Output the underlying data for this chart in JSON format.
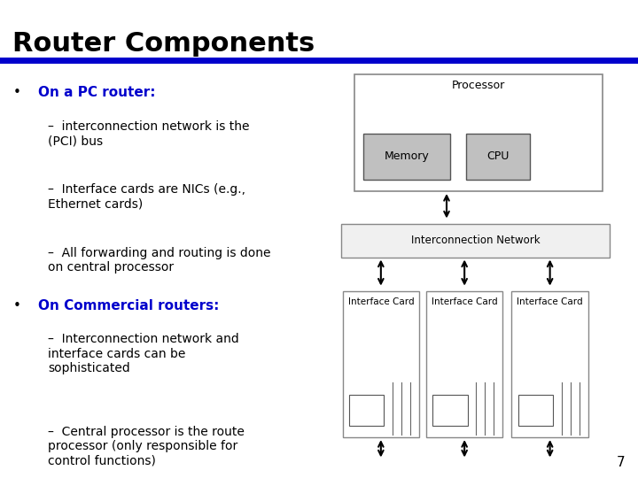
{
  "title": "Router Components",
  "title_color": "#000000",
  "title_fontsize": 22,
  "divider_color": "#0000CC",
  "background_color": "#FFFFFF",
  "text_color": "#000000",
  "blue_color": "#0000CC",
  "bullet1_header": "On a PC router:",
  "bullet1_items": [
    "interconnection network is the\n(PCI) bus",
    "Interface cards are NICs (e.g.,\nEthernet cards)",
    "All forwarding and routing is done\non central processor"
  ],
  "bullet2_header": "On Commercial routers:",
  "bullet2_items": [
    "Interconnection network and\ninterface cards can be\nsophisticated",
    "Central processor is the route\nprocessor (only responsible for\ncontrol functions)"
  ],
  "page_number": "7"
}
